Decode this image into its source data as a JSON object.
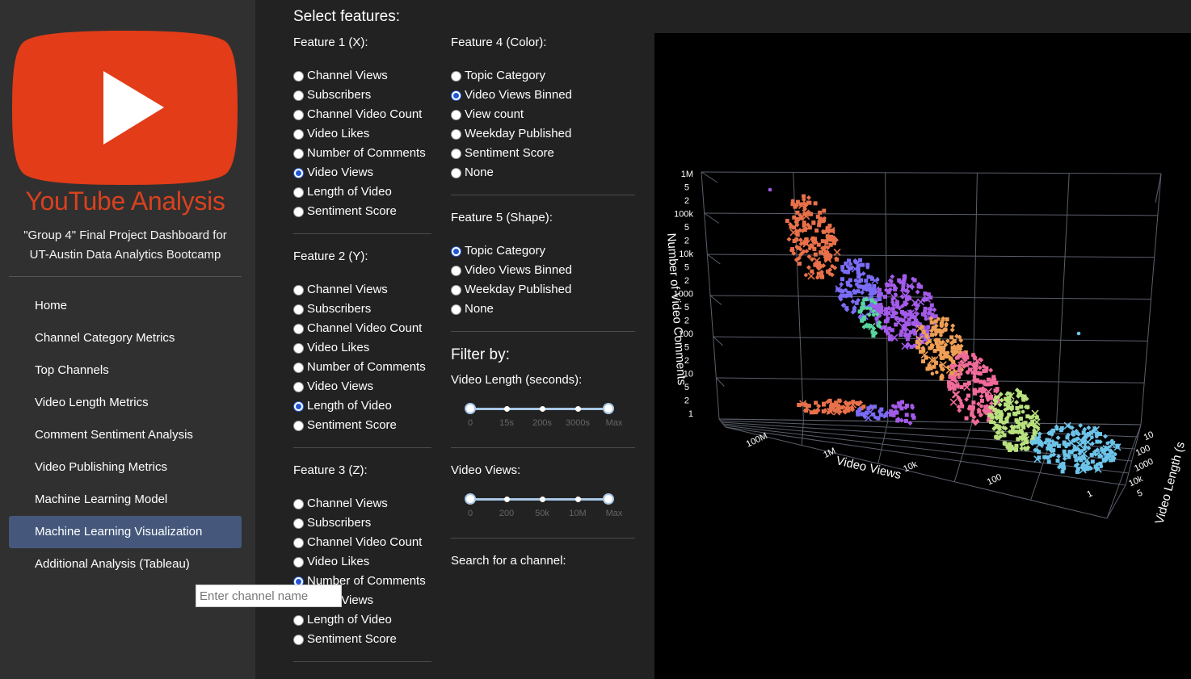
{
  "sidebar": {
    "brand": "YouTube Analysis",
    "tagline_line1": "\"Group 4\" Final Project Dashboard for",
    "tagline_line2": "UT-Austin Data Analytics Bootcamp",
    "nav": [
      {
        "label": "Home",
        "active": false
      },
      {
        "label": "Channel Category Metrics",
        "active": false
      },
      {
        "label": "Top Channels",
        "active": false
      },
      {
        "label": "Video Length Metrics",
        "active": false
      },
      {
        "label": "Comment Sentiment Analysis",
        "active": false
      },
      {
        "label": "Video Publishing Metrics",
        "active": false
      },
      {
        "label": "Machine Learning Model",
        "active": false
      },
      {
        "label": "Machine Learning Visualization",
        "active": true
      },
      {
        "label": "Additional Analysis (Tableau)",
        "active": false
      }
    ],
    "logo_color": "#d9411e"
  },
  "features": {
    "title": "Select features:",
    "feature1": {
      "title": "Feature 1 (X):",
      "options": [
        "Channel Views",
        "Subscribers",
        "Channel Video Count",
        "Video Likes",
        "Number of Comments",
        "Video Views",
        "Length of Video",
        "Sentiment Score"
      ],
      "selected": "Video Views"
    },
    "feature2": {
      "title": "Feature 2 (Y):",
      "options": [
        "Channel Views",
        "Subscribers",
        "Channel Video Count",
        "Video Likes",
        "Number of Comments",
        "Video Views",
        "Length of Video",
        "Sentiment Score"
      ],
      "selected": "Length of Video"
    },
    "feature3": {
      "title": "Feature 3 (Z):",
      "options": [
        "Channel Views",
        "Subscribers",
        "Channel Video Count",
        "Video Likes",
        "Number of Comments",
        "Video Views",
        "Length of Video",
        "Sentiment Score"
      ],
      "selected": "Number of Comments"
    },
    "feature4": {
      "title": "Feature 4 (Color):",
      "options": [
        "Topic Category",
        "Video Views Binned",
        "View count",
        "Weekday Published",
        "Sentiment Score",
        "None"
      ],
      "selected": "Video Views Binned"
    },
    "feature5": {
      "title": "Feature 5 (Shape):",
      "options": [
        "Topic Category",
        "Video Views Binned",
        "Weekday Published",
        "None"
      ],
      "selected": "Topic Category"
    }
  },
  "filters": {
    "title": "Filter by:",
    "length": {
      "label": "Video Length (seconds):",
      "ticks": [
        "0",
        "15s",
        "200s",
        "3000s",
        "Max"
      ],
      "range_low": "0",
      "range_high": "Max"
    },
    "views": {
      "label": "Video Views:",
      "ticks": [
        "0",
        "200",
        "50k",
        "10M",
        "Max"
      ],
      "range_low": "0",
      "range_high": "Max"
    },
    "search": {
      "label": "Search for a channel:",
      "placeholder": "Enter channel name"
    }
  },
  "plot": {
    "x_title": "Video Views",
    "y_title": "Video Length (s",
    "z_title": "Number of Video Comments",
    "x_ticks": [
      "100M",
      "1M",
      "10k",
      "100",
      "1"
    ],
    "y_ticks": [
      "10",
      "100",
      "1000",
      "10k",
      "5"
    ],
    "z_ticks": [
      "1M",
      "5",
      "2",
      "100k",
      "5",
      "2",
      "10k",
      "5",
      "2",
      "1000",
      "5",
      "2",
      "100",
      "5",
      "2",
      "10",
      "5",
      "2",
      "1"
    ],
    "background": "#000000",
    "cluster_colors": [
      "#e8714a",
      "#7b6cf6",
      "#a45bea",
      "#ef9f55",
      "#f06b9a",
      "#b9e27f",
      "#6cc4ea",
      "#58d49c"
    ]
  }
}
